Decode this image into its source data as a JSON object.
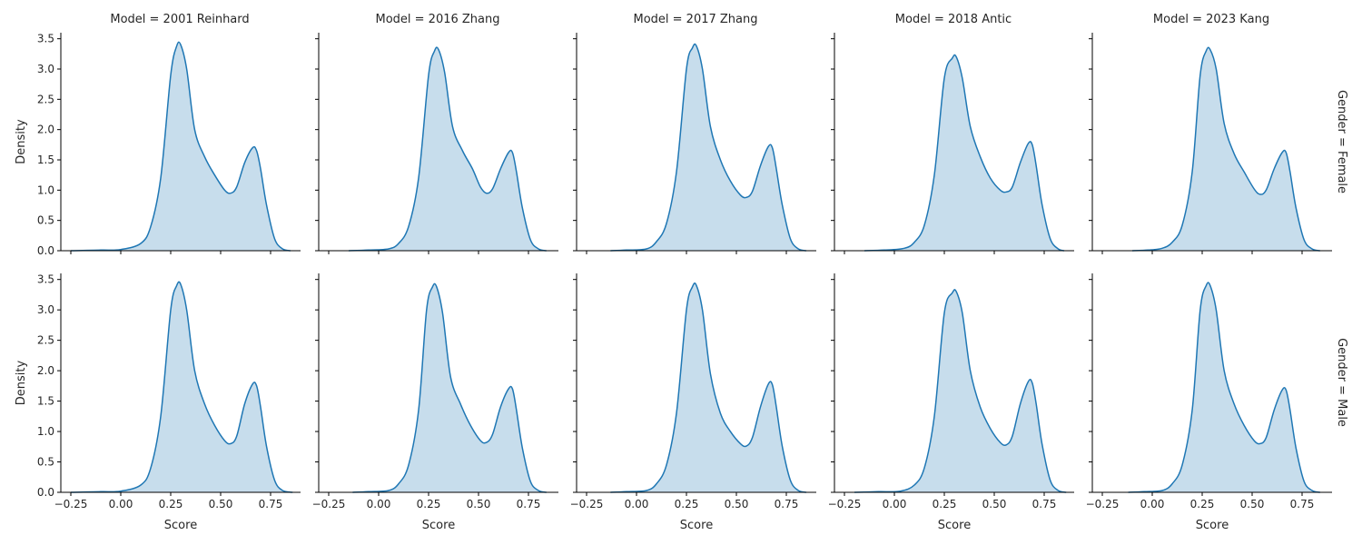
{
  "chart_data": {
    "type": "area",
    "col_titles": [
      "Model = 2001 Reinhard",
      "Model = 2016 Zhang",
      "Model = 2017 Zhang",
      "Model = 2018 Antic",
      "Model = 2023 Kang"
    ],
    "row_titles": [
      "Gender = Female",
      "Gender = Male"
    ],
    "xlabel": "Score",
    "ylabel": "Density",
    "xlim": [
      -0.3,
      0.9
    ],
    "ylim": [
      0,
      3.6
    ],
    "xticks": [
      -0.25,
      0.0,
      0.25,
      0.5,
      0.75
    ],
    "xtick_labels": [
      "−0.25",
      "0.00",
      "0.25",
      "0.50",
      "0.75"
    ],
    "yticks": [
      0.0,
      0.5,
      1.0,
      1.5,
      2.0,
      2.5,
      3.0,
      3.5
    ],
    "ytick_labels": [
      "0.0",
      "0.5",
      "1.0",
      "1.5",
      "2.0",
      "2.5",
      "3.0",
      "3.5"
    ],
    "color": "#1f77b4",
    "fill_opacity": 0.25,
    "panels": [
      {
        "row": 0,
        "col": 0,
        "x": [
          -0.25,
          -0.1,
          0.0,
          0.1,
          0.15,
          0.2,
          0.25,
          0.28,
          0.3,
          0.33,
          0.37,
          0.42,
          0.47,
          0.52,
          0.55,
          0.58,
          0.62,
          0.66,
          0.68,
          0.7,
          0.73,
          0.77,
          0.81,
          0.85
        ],
        "y": [
          0.0,
          0.01,
          0.02,
          0.12,
          0.4,
          1.2,
          2.9,
          3.38,
          3.4,
          3.0,
          2.0,
          1.55,
          1.25,
          1.0,
          0.95,
          1.05,
          1.45,
          1.7,
          1.65,
          1.35,
          0.75,
          0.2,
          0.03,
          0.0
        ]
      },
      {
        "row": 0,
        "col": 1,
        "x": [
          -0.15,
          -0.05,
          0.05,
          0.1,
          0.15,
          0.2,
          0.25,
          0.28,
          0.3,
          0.33,
          0.37,
          0.42,
          0.47,
          0.51,
          0.54,
          0.57,
          0.61,
          0.65,
          0.67,
          0.69,
          0.72,
          0.76,
          0.8,
          0.84
        ],
        "y": [
          0.0,
          0.01,
          0.03,
          0.12,
          0.4,
          1.2,
          2.9,
          3.3,
          3.32,
          2.95,
          2.05,
          1.65,
          1.35,
          1.05,
          0.95,
          1.02,
          1.35,
          1.62,
          1.62,
          1.3,
          0.7,
          0.18,
          0.03,
          0.0
        ]
      },
      {
        "row": 0,
        "col": 2,
        "x": [
          -0.13,
          -0.05,
          0.05,
          0.1,
          0.15,
          0.2,
          0.25,
          0.28,
          0.3,
          0.33,
          0.37,
          0.42,
          0.47,
          0.52,
          0.55,
          0.58,
          0.62,
          0.66,
          0.68,
          0.7,
          0.73,
          0.77,
          0.81,
          0.85
        ],
        "y": [
          0.0,
          0.01,
          0.03,
          0.15,
          0.45,
          1.3,
          3.0,
          3.35,
          3.38,
          3.0,
          2.05,
          1.5,
          1.15,
          0.92,
          0.88,
          0.98,
          1.4,
          1.72,
          1.7,
          1.35,
          0.75,
          0.2,
          0.03,
          0.0
        ]
      },
      {
        "row": 0,
        "col": 3,
        "x": [
          -0.15,
          -0.05,
          0.05,
          0.1,
          0.15,
          0.2,
          0.25,
          0.29,
          0.31,
          0.34,
          0.38,
          0.43,
          0.48,
          0.53,
          0.56,
          0.59,
          0.63,
          0.67,
          0.69,
          0.71,
          0.74,
          0.78,
          0.82,
          0.85
        ],
        "y": [
          0.0,
          0.01,
          0.04,
          0.14,
          0.42,
          1.25,
          2.85,
          3.18,
          3.2,
          2.85,
          2.05,
          1.55,
          1.2,
          1.0,
          0.97,
          1.05,
          1.45,
          1.77,
          1.75,
          1.4,
          0.75,
          0.2,
          0.03,
          0.0
        ]
      },
      {
        "row": 0,
        "col": 4,
        "x": [
          -0.1,
          -0.02,
          0.05,
          0.1,
          0.15,
          0.2,
          0.24,
          0.27,
          0.29,
          0.32,
          0.36,
          0.41,
          0.46,
          0.51,
          0.54,
          0.57,
          0.61,
          0.65,
          0.67,
          0.69,
          0.72,
          0.76,
          0.8,
          0.84
        ],
        "y": [
          0.0,
          0.01,
          0.04,
          0.14,
          0.42,
          1.3,
          2.9,
          3.3,
          3.32,
          3.0,
          2.1,
          1.6,
          1.3,
          1.02,
          0.93,
          1.0,
          1.35,
          1.62,
          1.62,
          1.3,
          0.7,
          0.18,
          0.03,
          0.0
        ]
      },
      {
        "row": 1,
        "col": 0,
        "x": [
          -0.25,
          -0.1,
          0.0,
          0.1,
          0.15,
          0.2,
          0.25,
          0.28,
          0.3,
          0.33,
          0.37,
          0.42,
          0.47,
          0.52,
          0.55,
          0.58,
          0.62,
          0.66,
          0.68,
          0.7,
          0.73,
          0.77,
          0.81,
          0.86
        ],
        "y": [
          0.0,
          0.01,
          0.02,
          0.12,
          0.4,
          1.25,
          3.0,
          3.4,
          3.42,
          3.0,
          2.0,
          1.45,
          1.1,
          0.85,
          0.8,
          0.92,
          1.45,
          1.78,
          1.75,
          1.4,
          0.75,
          0.2,
          0.03,
          0.0
        ]
      },
      {
        "row": 1,
        "col": 1,
        "x": [
          -0.13,
          -0.05,
          0.05,
          0.1,
          0.15,
          0.2,
          0.24,
          0.27,
          0.29,
          0.32,
          0.36,
          0.41,
          0.46,
          0.51,
          0.54,
          0.57,
          0.61,
          0.65,
          0.67,
          0.69,
          0.72,
          0.76,
          0.8,
          0.84
        ],
        "y": [
          0.0,
          0.01,
          0.03,
          0.14,
          0.45,
          1.35,
          3.0,
          3.38,
          3.38,
          2.95,
          1.9,
          1.45,
          1.1,
          0.85,
          0.82,
          0.95,
          1.4,
          1.7,
          1.7,
          1.35,
          0.72,
          0.18,
          0.03,
          0.0
        ]
      },
      {
        "row": 1,
        "col": 2,
        "x": [
          -0.13,
          -0.05,
          0.05,
          0.1,
          0.15,
          0.2,
          0.25,
          0.28,
          0.3,
          0.33,
          0.37,
          0.42,
          0.47,
          0.52,
          0.55,
          0.58,
          0.62,
          0.66,
          0.68,
          0.7,
          0.73,
          0.77,
          0.81,
          0.85
        ],
        "y": [
          0.0,
          0.01,
          0.03,
          0.14,
          0.45,
          1.3,
          3.0,
          3.38,
          3.4,
          3.0,
          1.95,
          1.3,
          1.0,
          0.8,
          0.76,
          0.9,
          1.4,
          1.78,
          1.77,
          1.4,
          0.75,
          0.2,
          0.03,
          0.0
        ]
      },
      {
        "row": 1,
        "col": 3,
        "x": [
          -0.2,
          -0.08,
          0.03,
          0.1,
          0.15,
          0.2,
          0.25,
          0.29,
          0.31,
          0.34,
          0.38,
          0.43,
          0.48,
          0.53,
          0.56,
          0.59,
          0.63,
          0.67,
          0.69,
          0.71,
          0.74,
          0.78,
          0.82,
          0.86
        ],
        "y": [
          0.0,
          0.01,
          0.02,
          0.12,
          0.4,
          1.25,
          2.95,
          3.28,
          3.3,
          2.95,
          2.0,
          1.4,
          1.05,
          0.82,
          0.78,
          0.92,
          1.45,
          1.82,
          1.8,
          1.45,
          0.78,
          0.2,
          0.03,
          0.0
        ]
      },
      {
        "row": 1,
        "col": 4,
        "x": [
          -0.12,
          -0.04,
          0.05,
          0.1,
          0.15,
          0.2,
          0.24,
          0.27,
          0.29,
          0.32,
          0.36,
          0.41,
          0.46,
          0.51,
          0.54,
          0.57,
          0.61,
          0.65,
          0.67,
          0.69,
          0.72,
          0.76,
          0.8,
          0.84
        ],
        "y": [
          0.0,
          0.01,
          0.03,
          0.14,
          0.45,
          1.35,
          3.0,
          3.4,
          3.4,
          3.0,
          2.0,
          1.45,
          1.1,
          0.85,
          0.8,
          0.9,
          1.35,
          1.68,
          1.68,
          1.35,
          0.72,
          0.18,
          0.03,
          0.0
        ]
      }
    ]
  }
}
